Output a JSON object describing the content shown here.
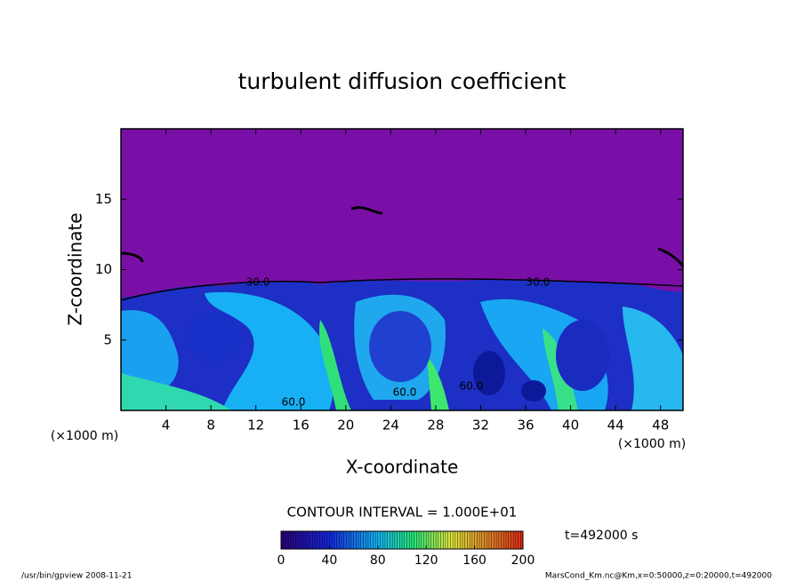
{
  "chart_data": {
    "type": "contour",
    "title": "turbulent diffusion coefficient",
    "x_label": "X-coordinate",
    "y_label": "Z-coordinate",
    "x_unit": "(×1000 m)",
    "y_unit": "(×1000 m)",
    "xlim": [
      0,
      50
    ],
    "xticks": [
      4,
      8,
      12,
      16,
      20,
      24,
      28,
      32,
      36,
      40,
      44,
      48
    ],
    "ylim": [
      0,
      20
    ],
    "yticks": [
      5,
      10,
      15
    ],
    "contour_interval": "CONTOUR INTERVAL = 1.000E+01",
    "contour_labels": [
      "60.0",
      "60.0",
      "60.0",
      "30.0",
      "30.0"
    ],
    "time_label": "t=492000 s",
    "colorbar": {
      "lim": [
        0,
        200
      ],
      "ticks": [
        0,
        40,
        80,
        120,
        160,
        200
      ]
    },
    "footer_left": "/usr/bin/gpview   2008-11-21",
    "footer_right": "MarsCond_Km.nc@Km,x=0:50000,z=0:20000,t=492000"
  }
}
